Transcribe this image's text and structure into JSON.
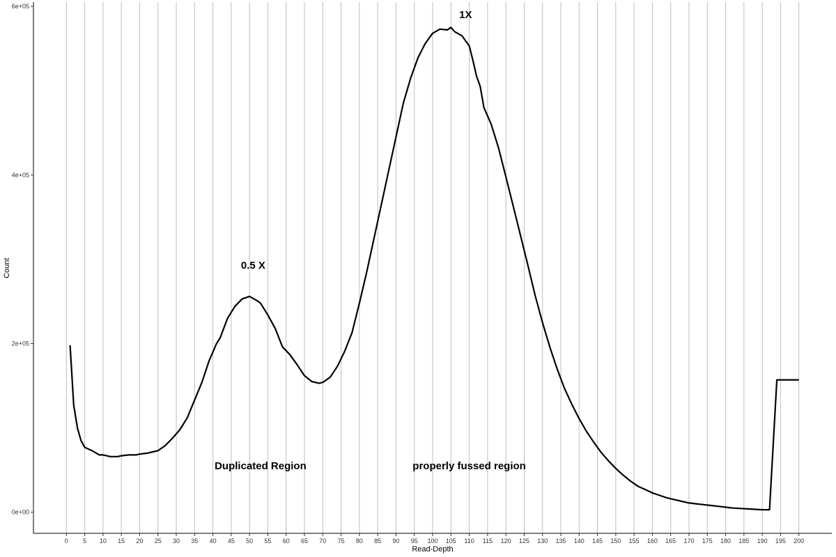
{
  "chart_data": {
    "type": "line",
    "xlabel": "Read-Depth",
    "ylabel": "Count",
    "xlim": [
      -9,
      209
    ],
    "ylim": [
      -25000,
      605000
    ],
    "x_ticks": [
      0,
      5,
      10,
      15,
      20,
      25,
      30,
      35,
      40,
      45,
      50,
      55,
      60,
      65,
      70,
      75,
      80,
      85,
      90,
      95,
      100,
      105,
      110,
      115,
      120,
      125,
      130,
      135,
      140,
      145,
      150,
      155,
      160,
      165,
      170,
      175,
      180,
      185,
      190,
      195,
      200
    ],
    "y_ticks": [
      {
        "value": 0,
        "label": "0e+00"
      },
      {
        "value": 200000,
        "label": "2e+05"
      },
      {
        "value": 400000,
        "label": "4e+05"
      },
      {
        "value": 600000,
        "label": "6e+05"
      }
    ],
    "grid": "vertical major lines",
    "series": [
      {
        "x": [
          1,
          2,
          3,
          4,
          5,
          7,
          9,
          10,
          11,
          12,
          13,
          14,
          15,
          17,
          19,
          20,
          22,
          24,
          25,
          27,
          29,
          31,
          33,
          35,
          37,
          39,
          40,
          41,
          42,
          44,
          46,
          48,
          50,
          52,
          53,
          55,
          57,
          59,
          61,
          63,
          65,
          67,
          69,
          70,
          72,
          74,
          76,
          78,
          80,
          82,
          84,
          86,
          88,
          90,
          92,
          94,
          96,
          98,
          100,
          102,
          104,
          105,
          106,
          108,
          110,
          111,
          112,
          113,
          114,
          116,
          118,
          120,
          122,
          124,
          126,
          128,
          130,
          132,
          134,
          136,
          138,
          140,
          142,
          144,
          146,
          148,
          150,
          152,
          154,
          156,
          158,
          160,
          162,
          164,
          166,
          168,
          170,
          172,
          174,
          176,
          178,
          180,
          182,
          184,
          186,
          188,
          190,
          192,
          194,
          196,
          197,
          198,
          199,
          200
        ],
        "y": [
          198000,
          127000,
          100000,
          85000,
          77000,
          73000,
          68000,
          68000,
          67000,
          66000,
          66000,
          66000,
          67000,
          68000,
          68000,
          69000,
          70000,
          72000,
          73000,
          79000,
          88000,
          98000,
          112000,
          133000,
          154000,
          180000,
          190000,
          200000,
          207000,
          230000,
          244000,
          253000,
          256000,
          251000,
          248000,
          234000,
          218000,
          196000,
          187000,
          175000,
          162000,
          155000,
          153000,
          154000,
          160000,
          173000,
          191000,
          213000,
          248000,
          285000,
          325000,
          365000,
          405000,
          445000,
          485000,
          515000,
          539000,
          556000,
          568000,
          573000,
          572000,
          575000,
          570000,
          565000,
          553000,
          536000,
          517000,
          505000,
          480000,
          460000,
          432000,
          398000,
          363000,
          328000,
          293000,
          257000,
          225000,
          196000,
          170000,
          147000,
          128000,
          111000,
          96000,
          83000,
          71000,
          61000,
          52000,
          44000,
          37000,
          31000,
          27000,
          23000,
          20000,
          17000,
          15000,
          13000,
          11000,
          10000,
          9000,
          8000,
          7000,
          6000,
          5000,
          4500,
          4000,
          3500,
          3000,
          3000,
          157000,
          157000,
          157000,
          157000,
          157000,
          157000
        ],
        "color": "#000000"
      }
    ],
    "annotations": [
      {
        "text": "1X",
        "x": 109,
        "y": 590000
      },
      {
        "text": "0.5 X",
        "x": 51,
        "y": 293000
      },
      {
        "text": "Duplicated Region",
        "x": 53,
        "y": 55000
      },
      {
        "text": "properly fussed region",
        "x": 110,
        "y": 55000
      }
    ]
  }
}
